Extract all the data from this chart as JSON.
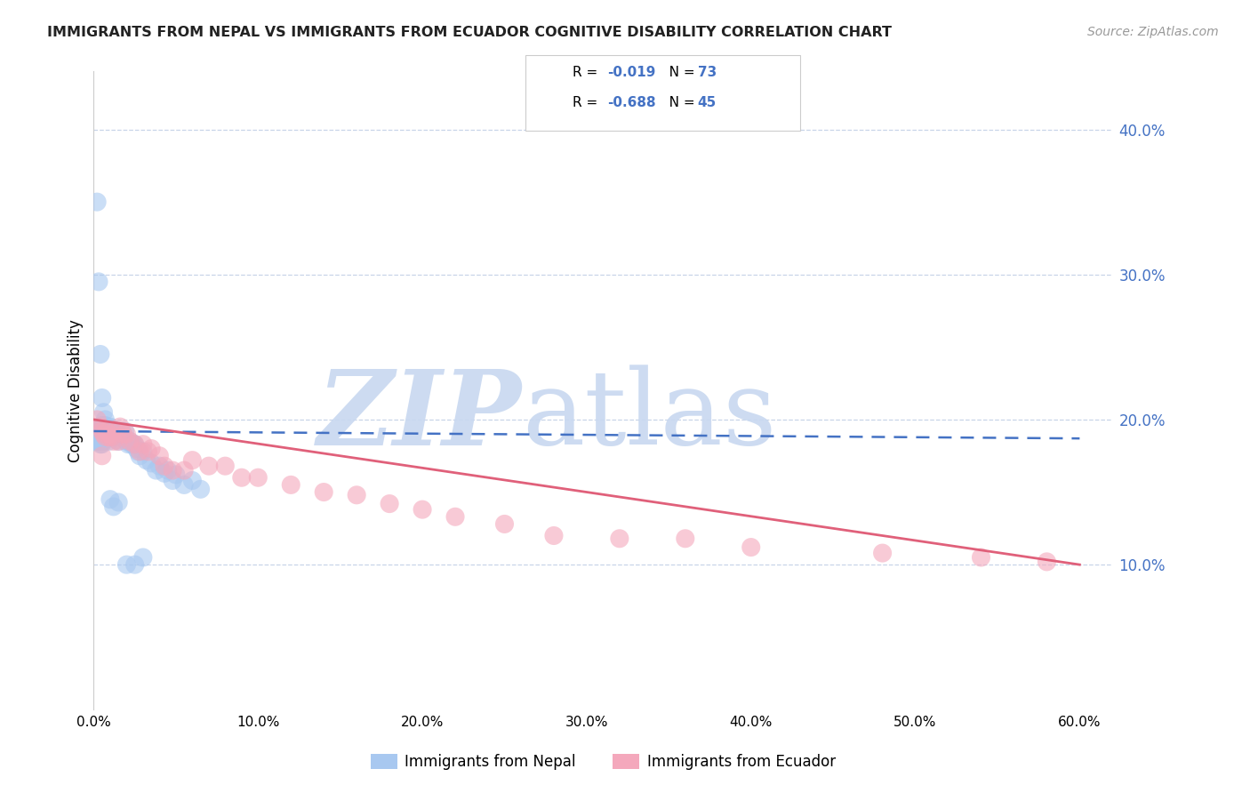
{
  "title": "IMMIGRANTS FROM NEPAL VS IMMIGRANTS FROM ECUADOR COGNITIVE DISABILITY CORRELATION CHART",
  "source": "Source: ZipAtlas.com",
  "ylabel": "Cognitive Disability",
  "xlim": [
    0.0,
    0.62
  ],
  "ylim": [
    0.0,
    0.44
  ],
  "yticks_right": [
    0.1,
    0.2,
    0.3,
    0.4
  ],
  "ytick_labels_right": [
    "10.0%",
    "20.0%",
    "30.0%",
    "40.0%"
  ],
  "xticks": [
    0.0,
    0.1,
    0.2,
    0.3,
    0.4,
    0.5,
    0.6
  ],
  "xtick_labels": [
    "0.0%",
    "10.0%",
    "20.0%",
    "30.0%",
    "40.0%",
    "50.0%",
    "60.0%"
  ],
  "nepal_R": "-0.019",
  "nepal_N": "73",
  "ecuador_R": "-0.688",
  "ecuador_N": "45",
  "nepal_color": "#a8c8f0",
  "ecuador_color": "#f4a8bc",
  "nepal_line_color": "#4472c4",
  "ecuador_line_color": "#e0607a",
  "watermark_zip_color": "#c8d8f0",
  "watermark_atlas_color": "#c8d8f0",
  "background_color": "#ffffff",
  "grid_color": "#c8d4e8",
  "title_color": "#222222",
  "source_color": "#999999",
  "axis_label_color": "#4472c4",
  "nepal_trend_start_x": 0.0,
  "nepal_trend_start_y": 0.192,
  "nepal_trend_end_x": 0.6,
  "nepal_trend_end_y": 0.187,
  "ecuador_trend_start_x": 0.0,
  "ecuador_trend_start_y": 0.2,
  "ecuador_trend_end_x": 0.6,
  "ecuador_trend_end_y": 0.1,
  "nepal_scatter_x": [
    0.001,
    0.001,
    0.002,
    0.002,
    0.002,
    0.003,
    0.003,
    0.003,
    0.004,
    0.004,
    0.004,
    0.005,
    0.005,
    0.005,
    0.005,
    0.005,
    0.006,
    0.006,
    0.006,
    0.007,
    0.007,
    0.007,
    0.008,
    0.008,
    0.009,
    0.009,
    0.01,
    0.01,
    0.011,
    0.011,
    0.012,
    0.013,
    0.014,
    0.015,
    0.015,
    0.016,
    0.017,
    0.018,
    0.019,
    0.02,
    0.021,
    0.022,
    0.023,
    0.024,
    0.025,
    0.026,
    0.027,
    0.028,
    0.03,
    0.032,
    0.035,
    0.038,
    0.04,
    0.043,
    0.045,
    0.048,
    0.05,
    0.055,
    0.06,
    0.065,
    0.002,
    0.003,
    0.004,
    0.005,
    0.006,
    0.007,
    0.008,
    0.01,
    0.012,
    0.015,
    0.02,
    0.025,
    0.03
  ],
  "nepal_scatter_y": [
    0.19,
    0.185,
    0.192,
    0.188,
    0.185,
    0.195,
    0.19,
    0.185,
    0.193,
    0.188,
    0.183,
    0.196,
    0.192,
    0.188,
    0.185,
    0.183,
    0.196,
    0.19,
    0.185,
    0.196,
    0.192,
    0.188,
    0.193,
    0.187,
    0.192,
    0.185,
    0.195,
    0.188,
    0.193,
    0.188,
    0.19,
    0.188,
    0.186,
    0.192,
    0.185,
    0.188,
    0.192,
    0.188,
    0.192,
    0.185,
    0.183,
    0.185,
    0.183,
    0.183,
    0.183,
    0.18,
    0.178,
    0.175,
    0.178,
    0.172,
    0.17,
    0.165,
    0.168,
    0.163,
    0.165,
    0.158,
    0.162,
    0.155,
    0.158,
    0.152,
    0.35,
    0.295,
    0.245,
    0.215,
    0.205,
    0.2,
    0.195,
    0.145,
    0.14,
    0.143,
    0.1,
    0.1,
    0.105
  ],
  "ecuador_scatter_x": [
    0.002,
    0.004,
    0.005,
    0.006,
    0.007,
    0.008,
    0.009,
    0.01,
    0.011,
    0.012,
    0.013,
    0.015,
    0.016,
    0.018,
    0.02,
    0.022,
    0.025,
    0.028,
    0.03,
    0.033,
    0.035,
    0.04,
    0.043,
    0.048,
    0.055,
    0.06,
    0.07,
    0.08,
    0.09,
    0.1,
    0.12,
    0.14,
    0.16,
    0.18,
    0.2,
    0.22,
    0.25,
    0.28,
    0.32,
    0.36,
    0.4,
    0.48,
    0.54,
    0.58,
    0.005
  ],
  "ecuador_scatter_y": [
    0.2,
    0.195,
    0.192,
    0.19,
    0.188,
    0.192,
    0.188,
    0.19,
    0.188,
    0.185,
    0.192,
    0.185,
    0.195,
    0.19,
    0.19,
    0.185,
    0.183,
    0.178,
    0.183,
    0.178,
    0.18,
    0.175,
    0.168,
    0.165,
    0.165,
    0.172,
    0.168,
    0.168,
    0.16,
    0.16,
    0.155,
    0.15,
    0.148,
    0.142,
    0.138,
    0.133,
    0.128,
    0.12,
    0.118,
    0.118,
    0.112,
    0.108,
    0.105,
    0.102,
    0.175
  ]
}
